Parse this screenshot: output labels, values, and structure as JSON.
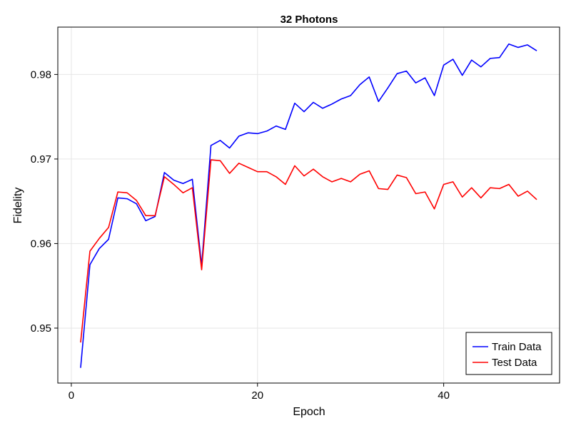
{
  "chart_data": {
    "type": "line",
    "title": "32 Photons",
    "xlabel": "Epoch",
    "ylabel": "Fidelity",
    "xlim": [
      -1.45,
      52.45
    ],
    "ylim": [
      0.9435,
      0.9856
    ],
    "xticks": [
      0,
      20,
      40
    ],
    "yticks": [
      0.95,
      0.96,
      0.97,
      0.98
    ],
    "ytick_labels": [
      "0.95",
      "0.96",
      "0.97",
      "0.98"
    ],
    "grid": true,
    "legend_position": "bottom-right",
    "x": [
      1,
      2,
      3,
      4,
      5,
      6,
      7,
      8,
      9,
      10,
      11,
      12,
      13,
      14,
      15,
      16,
      17,
      18,
      19,
      20,
      21,
      22,
      23,
      24,
      25,
      26,
      27,
      28,
      29,
      30,
      31,
      32,
      33,
      34,
      35,
      36,
      37,
      38,
      39,
      40,
      41,
      42,
      43,
      44,
      45,
      46,
      47,
      48,
      49,
      50
    ],
    "series": [
      {
        "name": "Train Data",
        "color": "#0000ff",
        "values": [
          0.9453,
          0.9575,
          0.9594,
          0.9605,
          0.9654,
          0.9653,
          0.9647,
          0.9627,
          0.9632,
          0.9684,
          0.9675,
          0.9671,
          0.9676,
          0.9574,
          0.9716,
          0.9722,
          0.9713,
          0.9727,
          0.9731,
          0.973,
          0.9733,
          0.9739,
          0.9735,
          0.9766,
          0.9756,
          0.9767,
          0.976,
          0.9765,
          0.9771,
          0.9775,
          0.9788,
          0.9797,
          0.9768,
          0.9784,
          0.9801,
          0.9804,
          0.979,
          0.9796,
          0.9775,
          0.9811,
          0.9818,
          0.9799,
          0.9817,
          0.9809,
          0.9819,
          0.982,
          0.9836,
          0.9832,
          0.9835,
          0.9828
        ]
      },
      {
        "name": "Test Data",
        "color": "#ff0000",
        "values": [
          0.9483,
          0.9591,
          0.9606,
          0.9619,
          0.9661,
          0.966,
          0.9651,
          0.9633,
          0.9633,
          0.9679,
          0.967,
          0.966,
          0.9666,
          0.9569,
          0.9699,
          0.9698,
          0.9683,
          0.9695,
          0.969,
          0.9685,
          0.9685,
          0.9679,
          0.967,
          0.9692,
          0.968,
          0.9688,
          0.9679,
          0.9673,
          0.9677,
          0.9673,
          0.9682,
          0.9686,
          0.9665,
          0.9664,
          0.9681,
          0.9678,
          0.9659,
          0.9661,
          0.9641,
          0.967,
          0.9673,
          0.9655,
          0.9666,
          0.9654,
          0.9666,
          0.9665,
          0.967,
          0.9656,
          0.9662,
          0.9652
        ]
      }
    ]
  }
}
